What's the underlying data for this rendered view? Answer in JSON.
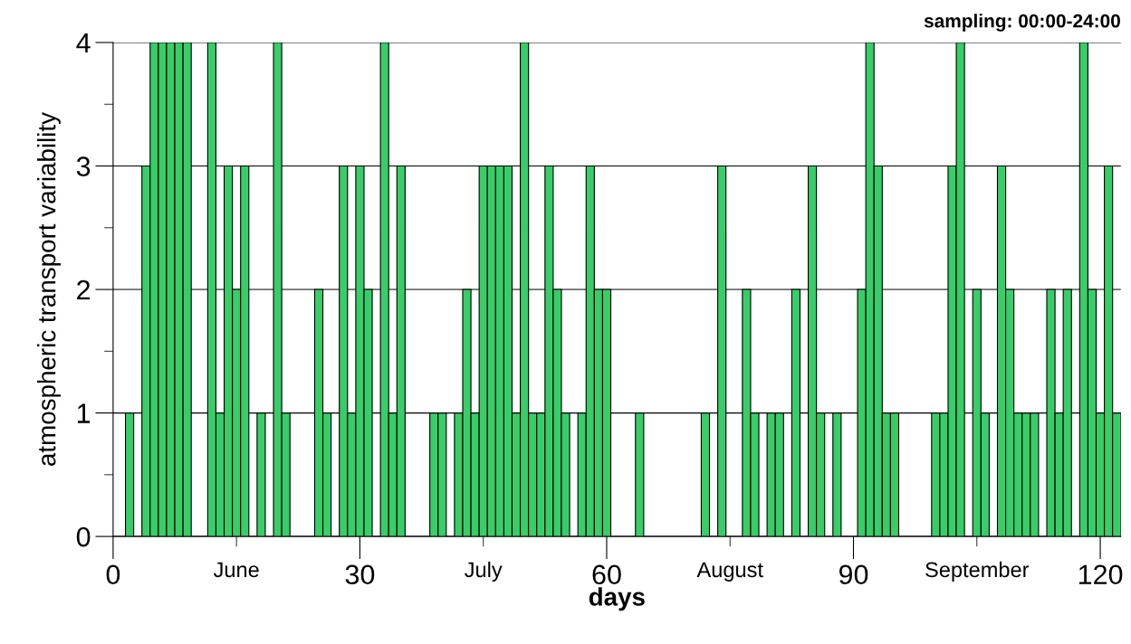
{
  "chart_data": {
    "type": "bar",
    "title": "sampling: 00:00-24:00",
    "xlabel": "days",
    "ylabel": "atmospheric transport variability",
    "x": [
      2,
      4,
      5,
      6,
      7,
      8,
      9,
      12,
      13,
      14,
      15,
      16,
      18,
      20,
      21,
      25,
      26,
      28,
      29,
      30,
      31,
      33,
      34,
      35,
      39,
      40,
      42,
      43,
      44,
      45,
      46,
      47,
      48,
      49,
      50,
      51,
      52,
      53,
      54,
      55,
      57,
      58,
      59,
      60,
      64,
      72,
      74,
      77,
      78,
      80,
      81,
      83,
      85,
      86,
      88,
      91,
      92,
      93,
      94,
      95,
      100,
      101,
      102,
      103,
      105,
      106,
      108,
      109,
      110,
      111,
      112,
      114,
      115,
      116,
      118,
      119,
      120,
      121,
      122
    ],
    "values": [
      1,
      3,
      4,
      4,
      4,
      4,
      4,
      4,
      1,
      3,
      2,
      3,
      1,
      4,
      1,
      2,
      1,
      3,
      1,
      3,
      2,
      4,
      1,
      3,
      1,
      1,
      1,
      2,
      1,
      3,
      3,
      3,
      3,
      1,
      4,
      1,
      1,
      3,
      2,
      1,
      1,
      3,
      2,
      2,
      1,
      1,
      3,
      2,
      1,
      1,
      1,
      2,
      3,
      1,
      1,
      2,
      4,
      3,
      1,
      1,
      1,
      1,
      3,
      4,
      2,
      1,
      3,
      2,
      1,
      1,
      1,
      2,
      1,
      2,
      4,
      2,
      1,
      3,
      1
    ],
    "color": "#38cd68",
    "xlim": [
      0,
      122.5
    ],
    "xticks": [
      0,
      {
        "value": 15,
        "label": "June"
      },
      30,
      {
        "value": 45,
        "label": "July"
      },
      60,
      {
        "value": 75,
        "label": "August"
      },
      90,
      {
        "value": 105,
        "label": "September"
      },
      120
    ],
    "ylim": [
      0,
      4
    ],
    "yticks": [
      0,
      {
        "value": 0.5,
        "label": null
      },
      1,
      {
        "value": 1.5,
        "label": null
      },
      2,
      {
        "value": 2.5,
        "label": null
      },
      3,
      {
        "value": 3.5,
        "label": null
      },
      4
    ],
    "grid": "y"
  }
}
